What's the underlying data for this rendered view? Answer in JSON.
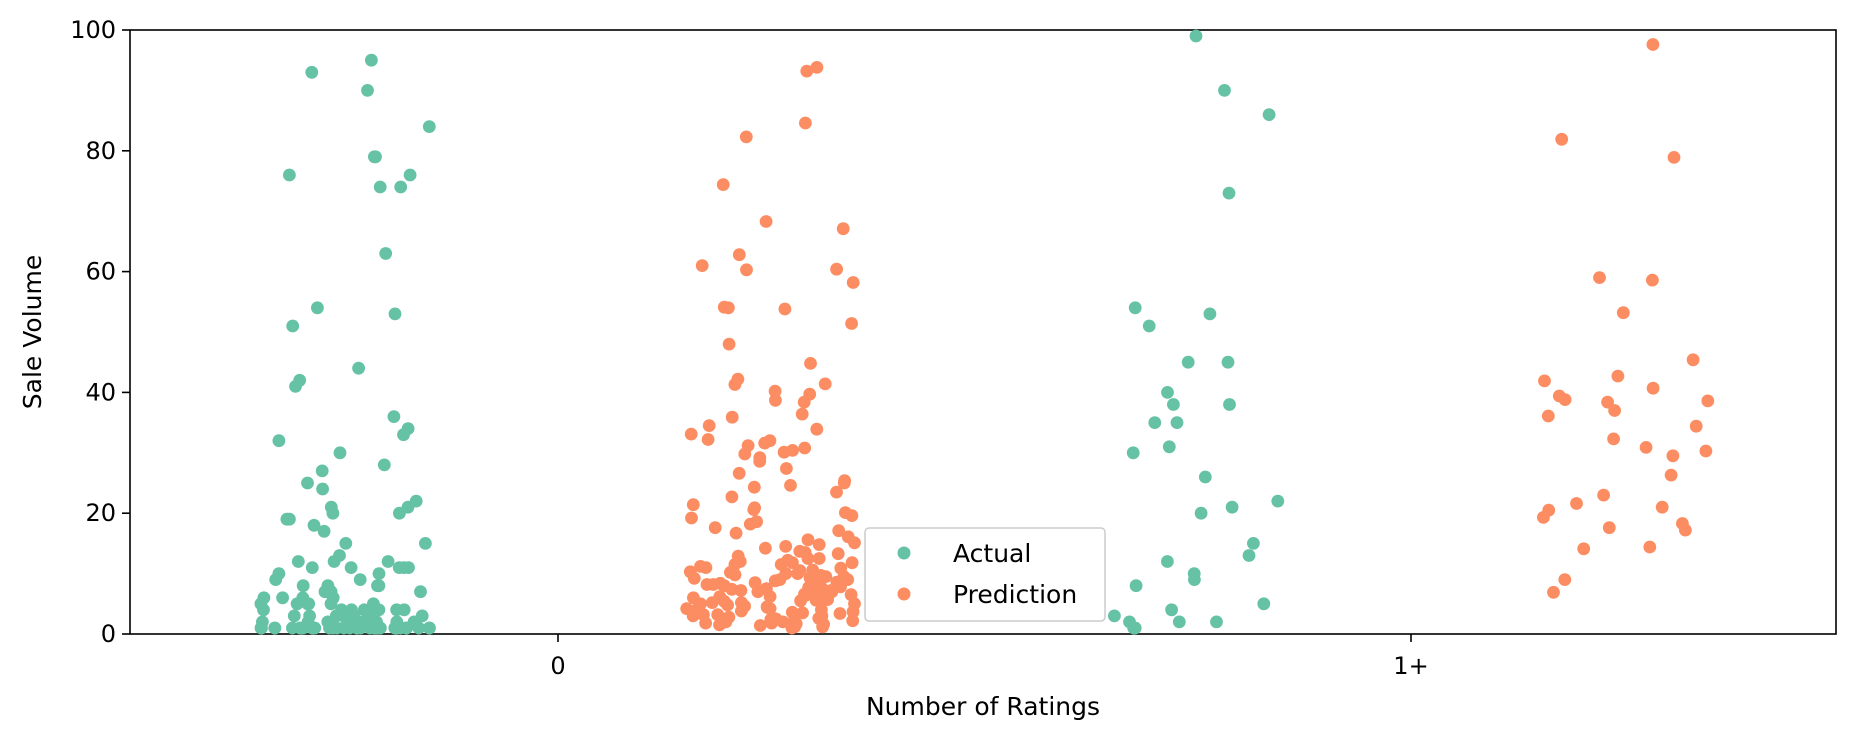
{
  "chart_data": {
    "type": "scatter",
    "subtype": "strip",
    "title": "",
    "xlabel": "Number of Ratings",
    "ylabel": "Sale Volume",
    "categories": [
      "0",
      "1+"
    ],
    "ylim": [
      0,
      100
    ],
    "yticks": [
      "0",
      "20",
      "40",
      "60",
      "80",
      "100"
    ],
    "grid": false,
    "legend_position": "lower-center",
    "series": [
      {
        "name": "Actual",
        "color": "#66c2a5",
        "points": [
          {
            "category": "0",
            "values": [
              95,
              93,
              90,
              84,
              79,
              79,
              76,
              76,
              74,
              74,
              63,
              54,
              53,
              51,
              44,
              42,
              41,
              36,
              34,
              33,
              32,
              30,
              28,
              27,
              25,
              24,
              22,
              21,
              21,
              20,
              20,
              19,
              19,
              18,
              17,
              15,
              15,
              13,
              12,
              12,
              12,
              11,
              11,
              11,
              11,
              11,
              10,
              10,
              9,
              9,
              8,
              8,
              8,
              8,
              7,
              7,
              7,
              7,
              6,
              6,
              6,
              6,
              5,
              5,
              5,
              5,
              5,
              5,
              4,
              4,
              4,
              4,
              4,
              4,
              4,
              3,
              3,
              3,
              3,
              3,
              3,
              3,
              3,
              2,
              2,
              2,
              2,
              2,
              2,
              2,
              2,
              2,
              2,
              1,
              1,
              1,
              1,
              1,
              1,
              1,
              1,
              1,
              1,
              1,
              1,
              1,
              1,
              1,
              1,
              1,
              1,
              1,
              1,
              1,
              1,
              1,
              1,
              1,
              1,
              1,
              1,
              1,
              1,
              1,
              1,
              1,
              1,
              1,
              1
            ]
          },
          {
            "category": "1+",
            "values": [
              99,
              90,
              86,
              73,
              54,
              53,
              51,
              45,
              45,
              40,
              38,
              38,
              35,
              35,
              31,
              30,
              26,
              22,
              21,
              20,
              15,
              13,
              12,
              10,
              9,
              8,
              5,
              4,
              3,
              2,
              2,
              2,
              1,
              1,
              1
            ]
          }
        ]
      },
      {
        "name": "Prediction",
        "color": "#fc8d62",
        "points": [
          {
            "category": "0",
            "values": [
              93.8,
              93.2,
              84.6,
              82.3,
              74.4,
              68.3,
              67.1,
              62.8,
              61.0,
              60.4,
              60.3,
              58.2,
              54.1,
              54.0,
              53.8,
              51.4,
              48.0,
              44.8,
              42.2,
              41.4,
              41.3,
              40.2,
              39.7,
              38.7,
              38.4,
              36.4,
              35.9,
              34.5,
              33.9,
              33.1,
              32.2,
              32.0,
              31.6,
              31.2,
              30.8,
              30.4,
              30.1,
              29.8,
              29.2,
              28.6,
              27.4,
              26.6,
              25.4,
              25.0,
              24.6,
              24.3,
              23.5,
              22.7,
              21.4,
              20.9,
              20.6,
              20.1,
              19.6,
              19.2,
              18.6,
              18.2,
              17.6,
              17.1,
              16.7,
              16.1,
              15.6,
              15.1,
              14.8,
              14.2,
              13.7,
              13.3,
              12.9,
              12.5,
              12.2,
              11.8,
              11.5,
              11.2,
              10.9,
              10.6,
              10.3,
              10.0,
              9.8,
              9.5,
              9.3,
              9.0,
              8.8,
              8.6,
              8.4,
              8.2,
              8.0,
              7.8,
              7.6,
              7.4,
              7.2,
              7.0,
              6.8,
              6.6,
              6.4,
              6.2,
              6.0,
              5.8,
              5.6,
              5.4,
              5.2,
              5.0,
              4.8,
              4.6,
              4.4,
              4.2,
              4.0,
              3.8,
              3.6,
              3.4,
              3.2,
              3.0,
              2.8,
              2.6,
              2.4,
              2.2,
              2.0,
              1.8,
              1.6,
              1.4,
              1.2,
              1.0,
              12.0,
              11.0,
              10.0,
              9.0,
              8.0,
              7.0,
              6.0,
              5.0,
              4.0,
              3.0,
              2.0,
              1.5,
              10.5,
              9.5,
              8.5,
              7.5,
              6.5,
              5.5,
              4.5,
              3.5,
              2.5,
              1.8,
              13.5,
              12.5,
              11.5,
              10.2,
              9.2,
              8.2,
              7.2,
              6.2,
              5.2,
              4.2,
              3.2,
              2.2,
              1.2,
              14.5,
              11.8,
              9.7,
              7.7,
              5.7,
              3.7,
              1.7
            ]
          },
          {
            "category": "1+",
            "values": [
              97.6,
              81.9,
              78.9,
              59.0,
              58.6,
              53.2,
              45.4,
              42.7,
              41.9,
              40.7,
              39.4,
              38.8,
              38.6,
              38.4,
              37.0,
              36.1,
              34.4,
              32.3,
              30.9,
              30.3,
              29.5,
              26.3,
              23.0,
              21.6,
              21.0,
              20.5,
              19.3,
              18.3,
              17.6,
              17.2,
              14.4,
              14.1,
              9.0,
              6.9
            ]
          }
        ]
      }
    ]
  }
}
